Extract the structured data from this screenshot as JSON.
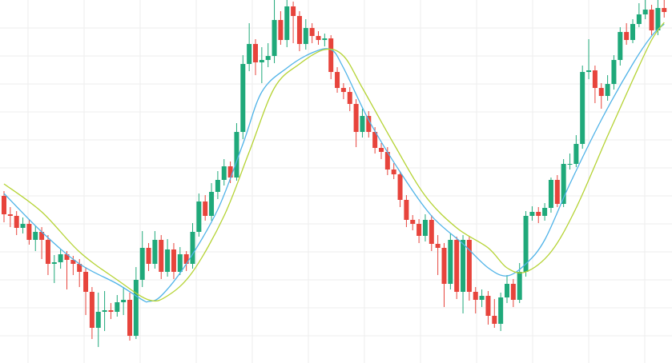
{
  "chart_data": {
    "type": "candlestick",
    "up_color": "#1fa97a",
    "down_color": "#e7443c",
    "grid": true,
    "ylim": [
      0,
      454
    ],
    "yticks": [
      34,
      69,
      104,
      139,
      174,
      209,
      244,
      279,
      314,
      349,
      384,
      419
    ],
    "open": [
      209,
      186,
      184,
      169,
      174,
      154,
      164,
      154,
      124,
      126,
      136,
      129,
      124,
      114,
      89,
      44,
      64,
      66,
      64,
      76,
      79,
      34,
      104,
      144,
      124,
      154,
      114,
      142,
      114,
      136,
      124,
      164,
      202,
      184,
      214,
      229,
      246,
      232,
      289,
      374,
      399,
      376,
      379,
      384,
      429,
      404,
      446,
      434,
      399,
      419,
      409,
      404,
      406,
      364,
      344,
      339,
      324,
      289,
      309,
      289,
      269,
      264,
      242,
      236,
      204,
      179,
      174,
      159,
      179,
      149,
      144,
      99,
      154,
      89,
      154,
      89,
      79,
      84,
      59,
      49,
      82,
      99,
      79,
      114,
      184,
      189,
      184,
      194,
      229,
      199,
      249,
      249,
      274,
      364,
      366,
      344,
      334,
      349,
      379,
      414,
      404,
      424,
      436,
      442,
      416,
      444
    ],
    "high": [
      215,
      195,
      190,
      182,
      180,
      172,
      170,
      160,
      135,
      142,
      140,
      134,
      130,
      120,
      95,
      88,
      90,
      75,
      85,
      95,
      88,
      120,
      165,
      150,
      165,
      160,
      155,
      150,
      145,
      140,
      175,
      212,
      210,
      225,
      240,
      255,
      252,
      300,
      385,
      425,
      405,
      395,
      400,
      454,
      440,
      454,
      452,
      440,
      430,
      425,
      415,
      412,
      410,
      370,
      350,
      345,
      330,
      318,
      315,
      295,
      275,
      270,
      250,
      240,
      210,
      185,
      180,
      186,
      185,
      160,
      150,
      162,
      158,
      160,
      158,
      95,
      92,
      90,
      80,
      88,
      110,
      105,
      125,
      190,
      196,
      195,
      200,
      232,
      235,
      255,
      262,
      285,
      372,
      405,
      372,
      350,
      360,
      385,
      420,
      425,
      430,
      450,
      454,
      448,
      454,
      454
    ],
    "low": [
      176,
      170,
      160,
      162,
      148,
      140,
      130,
      110,
      100,
      118,
      92,
      110,
      95,
      60,
      30,
      20,
      40,
      55,
      58,
      60,
      28,
      30,
      95,
      115,
      118,
      105,
      108,
      105,
      110,
      115,
      118,
      158,
      178,
      178,
      205,
      222,
      225,
      228,
      280,
      365,
      360,
      350,
      370,
      375,
      398,
      395,
      400,
      390,
      392,
      400,
      398,
      396,
      355,
      338,
      330,
      315,
      270,
      282,
      282,
      262,
      255,
      235,
      230,
      195,
      170,
      166,
      150,
      152,
      140,
      110,
      70,
      92,
      80,
      62,
      78,
      62,
      70,
      48,
      44,
      40,
      75,
      70,
      75,
      108,
      178,
      175,
      178,
      188,
      195,
      195,
      242,
      245,
      268,
      355,
      325,
      318,
      328,
      342,
      372,
      398,
      400,
      420,
      430,
      410,
      410,
      432
    ],
    "close": [
      186,
      184,
      169,
      174,
      154,
      164,
      154,
      124,
      126,
      136,
      129,
      124,
      114,
      89,
      44,
      64,
      66,
      64,
      76,
      79,
      34,
      104,
      144,
      124,
      154,
      114,
      142,
      114,
      136,
      124,
      164,
      202,
      184,
      214,
      229,
      246,
      232,
      289,
      374,
      399,
      376,
      379,
      384,
      429,
      404,
      446,
      434,
      399,
      419,
      409,
      404,
      406,
      364,
      344,
      339,
      324,
      289,
      309,
      289,
      269,
      264,
      242,
      236,
      204,
      179,
      174,
      159,
      179,
      149,
      144,
      99,
      154,
      89,
      154,
      89,
      79,
      84,
      59,
      49,
      82,
      99,
      79,
      114,
      184,
      189,
      184,
      194,
      229,
      199,
      249,
      249,
      274,
      364,
      366,
      344,
      334,
      349,
      379,
      414,
      404,
      424,
      436,
      442,
      416,
      444,
      439
    ],
    "series": [
      {
        "color": "#4fb3e8",
        "x": [
          0,
          6,
          12,
          18,
          22,
          23,
          25,
          29,
          34,
          38,
          41,
          45,
          49,
          52,
          54,
          58,
          63,
          68,
          73,
          77,
          80,
          83,
          86,
          90,
          95,
          100,
          103,
          105
        ],
        "values": [
          212,
          164,
          124,
          99,
          79,
          77,
          84,
          124,
          192,
          274,
          339,
          369,
          388,
          392,
          369,
          304,
          239,
          184,
          149,
          119,
          109,
          124,
          154,
          224,
          304,
          374,
          409,
          424
        ]
      },
      {
        "color": "#b5d334",
        "x": [
          0,
          6,
          12,
          18,
          23,
          26,
          30,
          35,
          39,
          43,
          47,
          51,
          54,
          57,
          62,
          67,
          72,
          77,
          80,
          83,
          87,
          91,
          96,
          100,
          103,
          105
        ],
        "values": [
          224,
          189,
          139,
          104,
          79,
          84,
          114,
          184,
          264,
          344,
          374,
          392,
          384,
          344,
          274,
          209,
          169,
          144,
          119,
          114,
          139,
          194,
          284,
          354,
          404,
          426
        ]
      }
    ]
  }
}
